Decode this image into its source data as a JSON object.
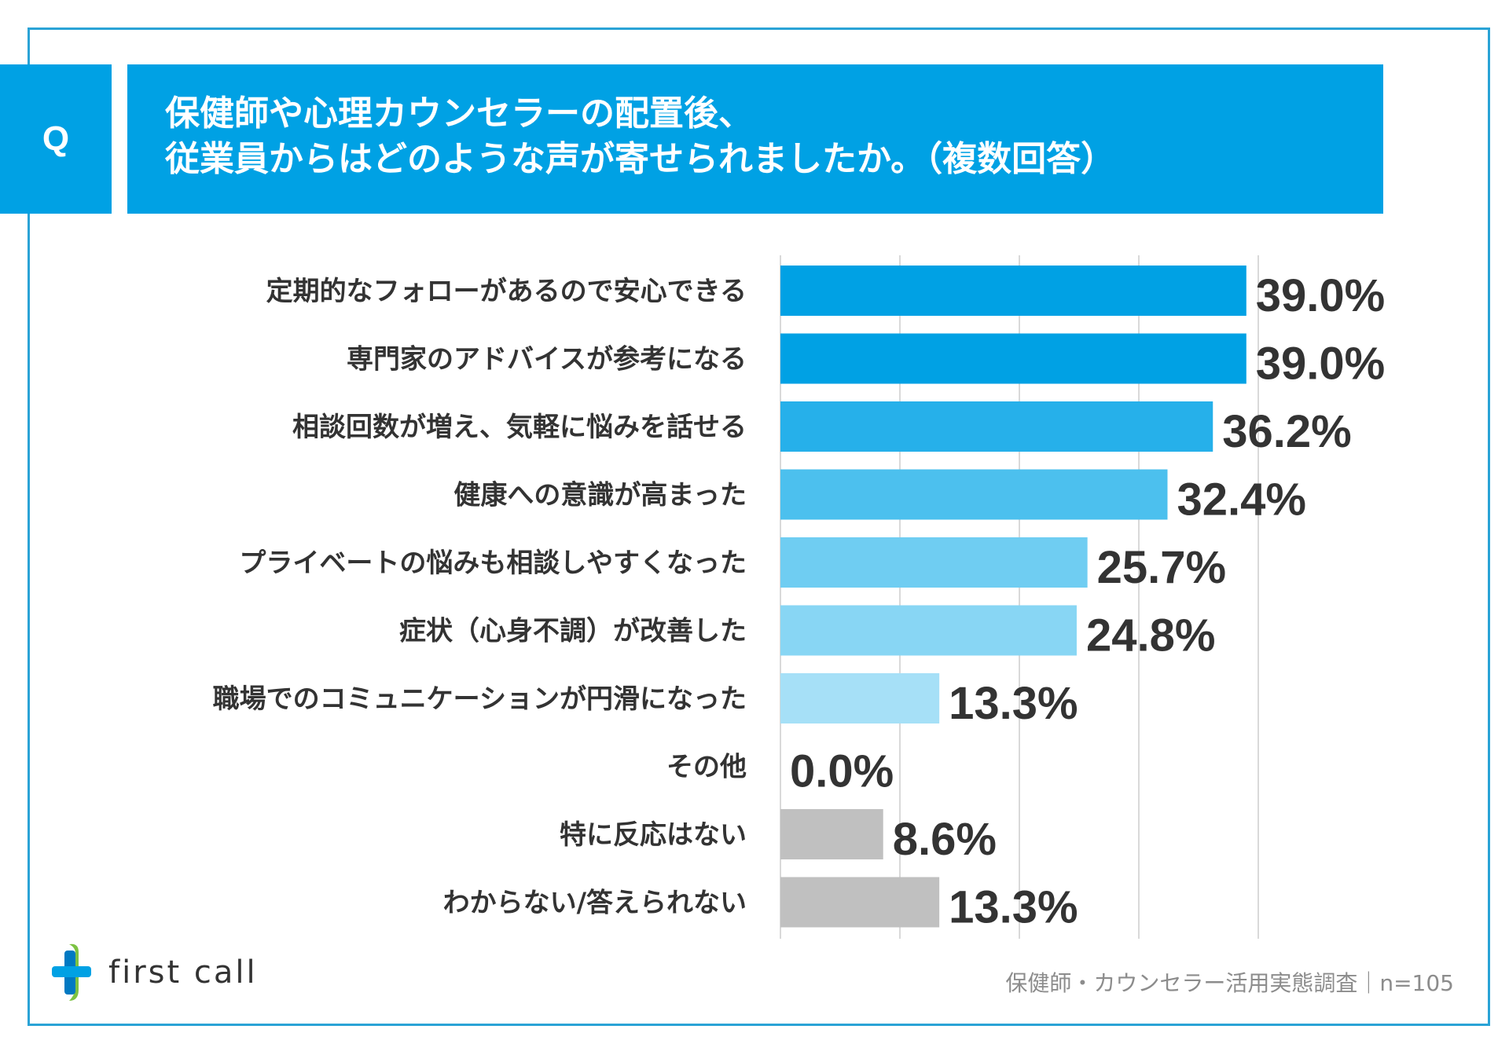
{
  "header": {
    "q_label": "Q",
    "title_line1": "保健師や心理カウンセラーの配置後、",
    "title_line2": "従業員からはどのような声が寄せられましたか。（複数回答）"
  },
  "chart_data": {
    "type": "bar",
    "orientation": "horizontal",
    "categories": [
      "定期的なフォローがあるので安心できる",
      "専門家のアドバイスが参考になる",
      "相談回数が増え、気軽に悩みを話せる",
      "健康への意識が高まった",
      "プライベートの悩みも相談しやすくなった",
      "症状（心身不調）が改善した",
      "職場でのコミュニケーションが円滑になった",
      "その他",
      "特に反応はない",
      "わからない/答えられない"
    ],
    "values": [
      39.0,
      39.0,
      36.2,
      32.4,
      25.7,
      24.8,
      13.3,
      0.0,
      8.6,
      13.3
    ],
    "value_labels": [
      "39.0%",
      "39.0%",
      "36.2%",
      "32.4%",
      "25.7%",
      "24.8%",
      "13.3%",
      "0.0%",
      "8.6%",
      "13.3%"
    ],
    "colors": [
      "#00a1e4",
      "#00a1e4",
      "#26b0ea",
      "#4cc0ee",
      "#6fcdf2",
      "#88d6f4",
      "#a6e0f7",
      "#a6e0f7",
      "#c0c0c0",
      "#c0c0c0"
    ],
    "xlim": [
      0,
      50
    ],
    "grid": true,
    "gridline_values": [
      0,
      10,
      20,
      30,
      40
    ]
  },
  "footer": {
    "logo_text": "first call",
    "source": "保健師・カウンセラー活用実態調査｜n=105"
  }
}
